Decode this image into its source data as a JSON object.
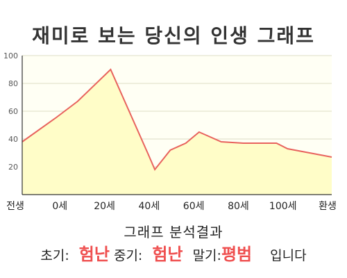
{
  "title": "재미로 보는 당신의 인생 그래프",
  "chart_data": {
    "type": "area",
    "categories": [
      "전생",
      "0세",
      "20세",
      "40세",
      "60세",
      "80세",
      "100세",
      "환생"
    ],
    "x": [
      -20,
      -5,
      5,
      20,
      37,
      40,
      47,
      54,
      60,
      70,
      80,
      95,
      100,
      120
    ],
    "values": [
      38,
      55,
      67,
      90,
      29,
      18,
      32,
      37,
      45,
      38,
      37,
      37,
      33,
      27
    ],
    "xlim": [
      -20,
      120
    ],
    "ylim": [
      0,
      100
    ],
    "yticks": [
      20,
      40,
      60,
      80,
      100
    ],
    "grid": true,
    "colors": {
      "line": "#e8625d",
      "fill": "#fffdc8",
      "plot_bg": "#fffff4",
      "grid": "#dcdcc4"
    }
  },
  "analysis": {
    "title": "그래프 분석결과",
    "early_label": "초기:",
    "early_value": "험난",
    "middle_label": "중기:",
    "middle_value": "험난",
    "late_label": "말기:",
    "late_value": "평범",
    "suffix": "입니다"
  }
}
